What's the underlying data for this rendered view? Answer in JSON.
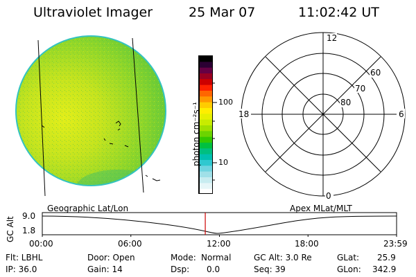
{
  "header": {
    "title": "Ultraviolet Imager",
    "date": "25 Mar 07",
    "time": "11:02:42 UT"
  },
  "colorbar": {
    "unit_label": "photon cm⁻²s⁻¹",
    "tick_labels": [
      "100",
      "10"
    ],
    "colors": [
      "#000000",
      "#2b0033",
      "#660044",
      "#990022",
      "#cc0000",
      "#ff2200",
      "#ff6600",
      "#ff9900",
      "#ffcc00",
      "#ffee00",
      "#e6f000",
      "#c8ec00",
      "#a0e000",
      "#6cd400",
      "#34c800",
      "#00c040",
      "#00bf80",
      "#00c0b0",
      "#30c8d0",
      "#70d4e0",
      "#a0e0e8",
      "#c8ecf0",
      "#e6f6f8",
      "#ffffff"
    ]
  },
  "polar_grid": {
    "mlt_labels": {
      "top": "12",
      "left": "18",
      "right": "6",
      "bottom": "0"
    },
    "lat_labels": [
      "60",
      "70",
      "80"
    ]
  },
  "timeline": {
    "left_label": "Geographic Lat/Lon",
    "right_label": "Apex MLat/MLT",
    "y_axis_label": "GC Alt",
    "y_ticks": [
      "9.0",
      "1.8"
    ],
    "x_ticks": [
      "00:00",
      "06:00",
      "12:00",
      "18:00",
      "23:59"
    ],
    "current_time_fraction": 0.46
  },
  "status": {
    "row1": {
      "flt": "Flt: LBHL",
      "door": "Door: Open",
      "mode_label": "Mode:",
      "mode_value": "Normal",
      "gc_alt": "GC Alt: 3.0 Re",
      "glat_label": "GLat:",
      "glat_value": "25.9"
    },
    "row2": {
      "ip": "IP: 36.0",
      "gain": "Gain: 14",
      "dsp_label": "Dsp:",
      "dsp_value": "0.0",
      "seq": "Seq: 39",
      "glon_label": "GLon:",
      "glon_value": "342.9"
    }
  }
}
